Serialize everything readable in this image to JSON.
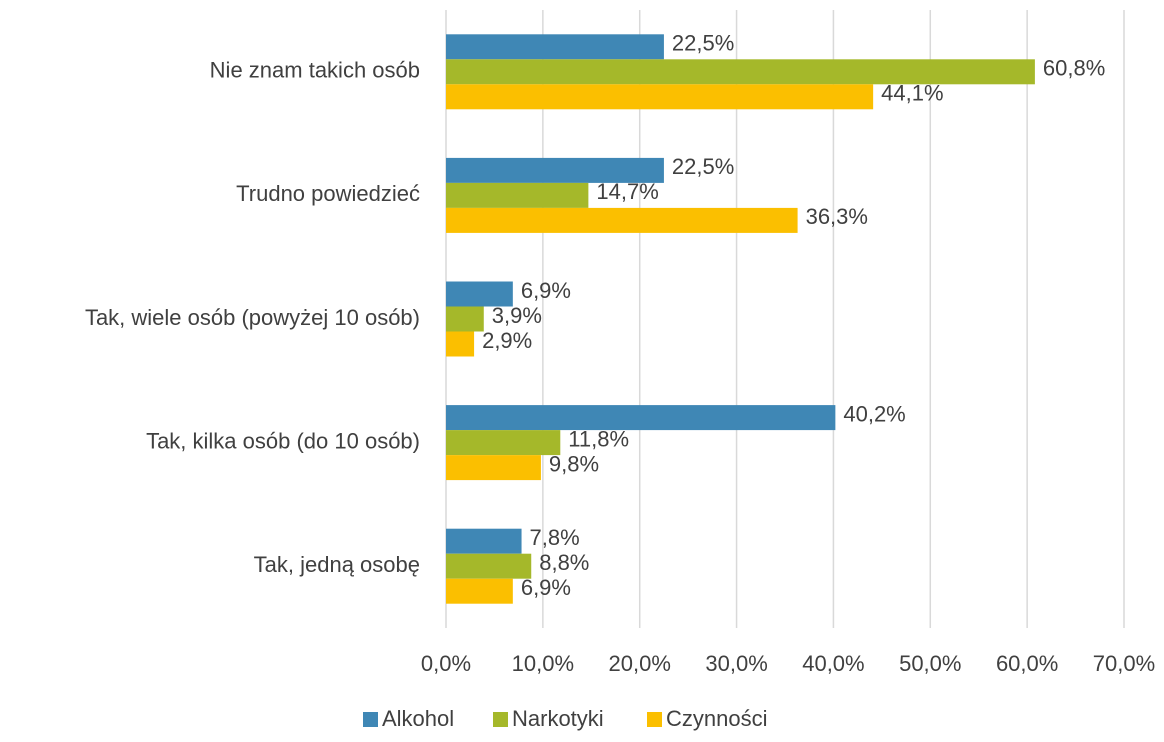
{
  "chart_data": {
    "type": "bar",
    "orientation": "horizontal",
    "categories": [
      "Nie znam takich osób",
      "Trudno powiedzieć",
      "Tak, wiele osób (powyżej 10 osób)",
      "Tak, kilka osób (do 10 osób)",
      "Tak, jedną osobę"
    ],
    "series": [
      {
        "name": "Alkohol",
        "color": "#3f87b5",
        "values": [
          22.5,
          22.5,
          6.9,
          40.2,
          7.8
        ],
        "value_labels": [
          "22,5%",
          "22,5%",
          "6,9%",
          "40,2%",
          "7,8%"
        ]
      },
      {
        "name": "Narkotyki",
        "color": "#a5b82a",
        "values": [
          60.8,
          14.7,
          3.9,
          11.8,
          8.8
        ],
        "value_labels": [
          "60,8%",
          "14,7%",
          "3,9%",
          "11,8%",
          "8,8%"
        ]
      },
      {
        "name": "Czynności",
        "color": "#fbbf00",
        "values": [
          44.1,
          36.3,
          2.9,
          9.8,
          6.9
        ],
        "value_labels": [
          "44,1%",
          "36,3%",
          "2,9%",
          "9,8%",
          "6,9%"
        ]
      }
    ],
    "xlim": [
      0,
      70
    ],
    "xticks": [
      {
        "value": 0,
        "label": "0,0%"
      },
      {
        "value": 10,
        "label": "10,0%"
      },
      {
        "value": 20,
        "label": "20,0%"
      },
      {
        "value": 30,
        "label": "30,0%"
      },
      {
        "value": 40,
        "label": "40,0%"
      },
      {
        "value": 50,
        "label": "50,0%"
      },
      {
        "value": 60,
        "label": "60,0%"
      },
      {
        "value": 70,
        "label": "70,0%"
      }
    ],
    "grid": true,
    "legend": "bottom"
  }
}
